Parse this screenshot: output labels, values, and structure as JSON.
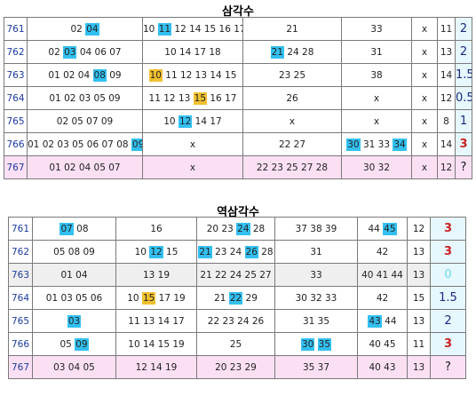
{
  "tables": [
    {
      "title": "삼각수",
      "rows": [
        {
          "idx": "761",
          "c1": [
            {
              "t": "02 "
            },
            {
              "t": "04",
              "h": "blue"
            }
          ],
          "c2": [
            {
              "t": "10 "
            },
            {
              "t": "11",
              "h": "blue"
            },
            {
              "t": " 12 14 15 16 17"
            }
          ],
          "c3": [
            {
              "t": "21"
            }
          ],
          "c4": [
            {
              "t": "33"
            }
          ],
          "c5": "x",
          "c6": "11",
          "score": "2",
          "score_style": "navy"
        },
        {
          "idx": "762",
          "c1": [
            {
              "t": "02 "
            },
            {
              "t": "03",
              "h": "blue"
            },
            {
              "t": " 04 06 07"
            }
          ],
          "c2": [
            {
              "t": "10 14 17 18"
            }
          ],
          "c3": [
            {
              "t": "21",
              "h": "blue"
            },
            {
              "t": " 24 28"
            }
          ],
          "c4": [
            {
              "t": "31"
            }
          ],
          "c5": "x",
          "c6": "13",
          "score": "2",
          "score_style": "navy"
        },
        {
          "idx": "763",
          "c1": [
            {
              "t": "01 02 04 "
            },
            {
              "t": "08",
              "h": "blue"
            },
            {
              "t": " 09"
            }
          ],
          "c2": [
            {
              "t": "10",
              "h": "yellow"
            },
            {
              "t": " 11 12 13 14 15"
            }
          ],
          "c3": [
            {
              "t": "23 25"
            }
          ],
          "c4": [
            {
              "t": "38"
            }
          ],
          "c5": "x",
          "c6": "14",
          "score": "1.5",
          "score_style": "navy"
        },
        {
          "idx": "764",
          "c1": [
            {
              "t": "01 02 03 05 09"
            }
          ],
          "c2": [
            {
              "t": "11 12 13 "
            },
            {
              "t": "15",
              "h": "yellow"
            },
            {
              "t": " 16 17"
            }
          ],
          "c3": [
            {
              "t": "26"
            }
          ],
          "c4": [
            {
              "t": "x"
            }
          ],
          "c5": "x",
          "c6": "12",
          "score": "0.5",
          "score_style": "navy"
        },
        {
          "idx": "765",
          "c1": [
            {
              "t": "02 05 07 09"
            }
          ],
          "c2": [
            {
              "t": "10 "
            },
            {
              "t": "12",
              "h": "blue"
            },
            {
              "t": " 14 17"
            }
          ],
          "c3": [
            {
              "t": "x"
            }
          ],
          "c4": [
            {
              "t": "x"
            }
          ],
          "c5": "x",
          "c6": "8",
          "score": "1",
          "score_style": "navy"
        },
        {
          "idx": "766",
          "c1": [
            {
              "t": "01 02 03 05 06 07 08 "
            },
            {
              "t": "09",
              "h": "blue"
            }
          ],
          "c2": [
            {
              "t": "x"
            }
          ],
          "c3": [
            {
              "t": "22 27"
            }
          ],
          "c4": [
            {
              "t": "30",
              "h": "blue"
            },
            {
              "t": " 31 33 "
            },
            {
              "t": "34",
              "h": "blue"
            }
          ],
          "c5": "x",
          "c6": "14",
          "score": "3",
          "score_style": "red"
        },
        {
          "idx": "767",
          "c1": [
            {
              "t": "01 02 04 05 07"
            }
          ],
          "c2": [
            {
              "t": "x"
            }
          ],
          "c3": [
            {
              "t": "22 23 25 27 28"
            }
          ],
          "c4": [
            {
              "t": "30 32"
            }
          ],
          "c5": "x",
          "c6": "12",
          "score": "?",
          "score_style": "black",
          "style": "pink"
        }
      ]
    },
    {
      "title": "역삼각수",
      "rows": [
        {
          "idx": "761",
          "c1": [
            {
              "t": "07",
              "h": "blue"
            },
            {
              "t": " 08"
            }
          ],
          "c2": [
            {
              "t": "16"
            }
          ],
          "c3": [
            {
              "t": "20 23 "
            },
            {
              "t": "24",
              "h": "blue"
            },
            {
              "t": " 28"
            }
          ],
          "c4": [
            {
              "t": "37 38 39"
            }
          ],
          "c5": [
            {
              "t": "44 "
            },
            {
              "t": "45",
              "h": "blue"
            }
          ],
          "c6": "12",
          "score": "3",
          "score_style": "red"
        },
        {
          "idx": "762",
          "c1": [
            {
              "t": "05 08 09"
            }
          ],
          "c2": [
            {
              "t": "10 "
            },
            {
              "t": "12",
              "h": "blue"
            },
            {
              "t": " 15"
            }
          ],
          "c3": [
            {
              "t": "21",
              "h": "blue"
            },
            {
              "t": " 23 24 "
            },
            {
              "t": "26",
              "h": "blue"
            },
            {
              "t": " 28"
            }
          ],
          "c4": [
            {
              "t": "31"
            }
          ],
          "c5": [
            {
              "t": "42"
            }
          ],
          "c6": "13",
          "score": "3",
          "score_style": "red"
        },
        {
          "idx": "763",
          "c1": [
            {
              "t": "01 04"
            }
          ],
          "c2": [
            {
              "t": "13 19"
            }
          ],
          "c3": [
            {
              "t": "21 22 24 25 27"
            }
          ],
          "c4": [
            {
              "t": "33"
            }
          ],
          "c5": [
            {
              "t": "40 41 44"
            }
          ],
          "c6": "13",
          "score": "0",
          "score_style": "cyan",
          "style": "gray"
        },
        {
          "idx": "764",
          "c1": [
            {
              "t": "01 03 05 06"
            }
          ],
          "c2": [
            {
              "t": "10 "
            },
            {
              "t": "15",
              "h": "yellow"
            },
            {
              "t": " 17 19"
            }
          ],
          "c3": [
            {
              "t": "21 "
            },
            {
              "t": "22",
              "h": "blue"
            },
            {
              "t": " 29"
            }
          ],
          "c4": [
            {
              "t": "30 32 33"
            }
          ],
          "c5": [
            {
              "t": "42"
            }
          ],
          "c6": "15",
          "score": "1.5",
          "score_style": "navy"
        },
        {
          "idx": "765",
          "c1": [
            {
              "t": "03",
              "h": "blue"
            }
          ],
          "c2": [
            {
              "t": "11 13 14 17"
            }
          ],
          "c3": [
            {
              "t": "22 23 24 26"
            }
          ],
          "c4": [
            {
              "t": "31 35"
            }
          ],
          "c5": [
            {
              "t": "43",
              "h": "blue"
            },
            {
              "t": " 44"
            }
          ],
          "c6": "13",
          "score": "2",
          "score_style": "navy"
        },
        {
          "idx": "766",
          "c1": [
            {
              "t": "05 "
            },
            {
              "t": "09",
              "h": "blue"
            }
          ],
          "c2": [
            {
              "t": "10 14 15 19"
            }
          ],
          "c3": [
            {
              "t": "25"
            }
          ],
          "c4": [
            {
              "t": "30",
              "h": "blue"
            },
            {
              "t": " "
            },
            {
              "t": "35",
              "h": "blue"
            }
          ],
          "c5": [
            {
              "t": "40 45"
            }
          ],
          "c6": "11",
          "score": "3",
          "score_style": "red"
        },
        {
          "idx": "767",
          "c1": [
            {
              "t": "03 04 05"
            }
          ],
          "c2": [
            {
              "t": "12 14 19"
            }
          ],
          "c3": [
            {
              "t": "20 23 29"
            }
          ],
          "c4": [
            {
              "t": "35 37"
            }
          ],
          "c5": [
            {
              "t": "40 43"
            }
          ],
          "c6": "13",
          "score": "?",
          "score_style": "black",
          "style": "pink"
        }
      ]
    }
  ],
  "colors": {
    "highlight_blue": "#33c0f0",
    "highlight_yellow": "#f0c030",
    "pink_row": "#fbe0f4",
    "score_bg": "#e6f7fd",
    "score_red": "#cc2222"
  }
}
